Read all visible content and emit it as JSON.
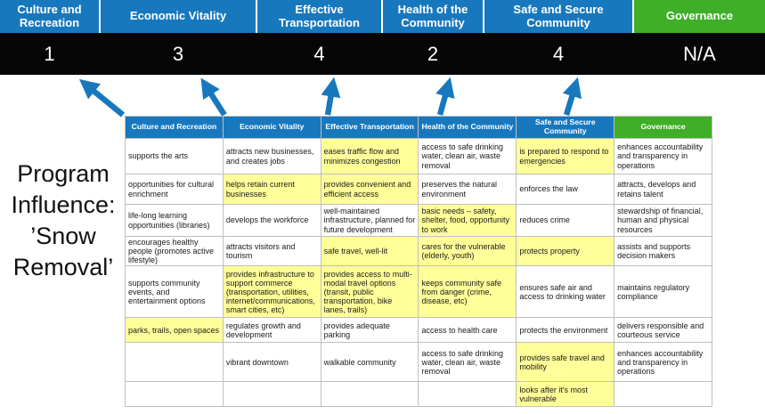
{
  "program_label": "Program Influence: ’Snow Removal’",
  "colors": {
    "header_blue": "#1878BE",
    "header_green": "#3FAE29",
    "highlight_yellow": "#FFFF99",
    "score_band_bg": "#050505",
    "arrow_blue": "#1878BE"
  },
  "top_band": {
    "cells": [
      {
        "label": "Culture and Recreation",
        "score": "1",
        "type": "blue"
      },
      {
        "label": "Economic Vitality",
        "score": "3",
        "type": "blue"
      },
      {
        "label": "Effective Transportation",
        "score": "4",
        "type": "blue"
      },
      {
        "label": "Health of the Community",
        "score": "2",
        "type": "blue"
      },
      {
        "label": "Safe and Secure Community",
        "score": "4",
        "type": "blue"
      },
      {
        "label": "Governance",
        "score": "N/A",
        "type": "green"
      }
    ]
  },
  "table": {
    "headers": [
      {
        "label": "Culture and Recreation",
        "type": "blue"
      },
      {
        "label": "Economic Vitality",
        "type": "blue"
      },
      {
        "label": "Effective Transportation",
        "type": "blue"
      },
      {
        "label": "Health of the Community",
        "type": "blue"
      },
      {
        "label": "Safe and Secure Community",
        "type": "blue"
      },
      {
        "label": "Governance",
        "type": "green"
      }
    ],
    "rows": [
      [
        {
          "text": "supports the arts",
          "hl": false
        },
        {
          "text": "attracts new businesses, and creates jobs",
          "hl": false
        },
        {
          "text": "eases traffic flow and minimizes congestion",
          "hl": true
        },
        {
          "text": "access to safe drinking water, clean air, waste removal",
          "hl": false
        },
        {
          "text": "is prepared to respond to emergencies",
          "hl": true
        },
        {
          "text": "enhances accountability and transparency in operations",
          "hl": false
        }
      ],
      [
        {
          "text": "opportunities for cultural enrichment",
          "hl": false
        },
        {
          "text": "helps retain current businesses",
          "hl": true
        },
        {
          "text": "provides convenient and efficient access",
          "hl": true
        },
        {
          "text": "preserves the natural environment",
          "hl": false
        },
        {
          "text": "enforces the law",
          "hl": false
        },
        {
          "text": "attracts, develops and retains talent",
          "hl": false
        }
      ],
      [
        {
          "text": "life-long learning opportunities (libraries)",
          "hl": false
        },
        {
          "text": "develops the workforce",
          "hl": false
        },
        {
          "text": "well-maintained infrastructure, planned for future development",
          "hl": false
        },
        {
          "text": "basic needs – safety, shelter, food, opportunity to work",
          "hl": true
        },
        {
          "text": "reduces crime",
          "hl": false
        },
        {
          "text": "stewardship of financial, human and physical resources",
          "hl": false
        }
      ],
      [
        {
          "text": "encourages healthy people (promotes active lifestyle)",
          "hl": false
        },
        {
          "text": "attracts visitors and tourism",
          "hl": false
        },
        {
          "text": "safe travel, well-lit",
          "hl": true
        },
        {
          "text": "cares for the vulnerable (elderly, youth)",
          "hl": true
        },
        {
          "text": "protects property",
          "hl": true
        },
        {
          "text": "assists and supports decision makers",
          "hl": false
        }
      ],
      [
        {
          "text": "supports community events, and entertainment options",
          "hl": false
        },
        {
          "text": "provides infrastructure to support commerce (transportation, utilities, internet/communications, smart cities, etc)",
          "hl": true
        },
        {
          "text": "provides access to multi-modal travel options (transit, public transportation, bike lanes, trails)",
          "hl": true
        },
        {
          "text": "keeps community safe from danger (crime, disease, etc)",
          "hl": true
        },
        {
          "text": "ensures safe air and access to drinking water",
          "hl": false
        },
        {
          "text": "maintains regulatory compliance",
          "hl": false
        }
      ],
      [
        {
          "text": "parks, trails, open spaces",
          "hl": true
        },
        {
          "text": "regulates growth and development",
          "hl": false
        },
        {
          "text": "provides adequate parking",
          "hl": false
        },
        {
          "text": "access to health care",
          "hl": false
        },
        {
          "text": "protects the environment",
          "hl": false
        },
        {
          "text": "delivers responsible and courteous service",
          "hl": false
        }
      ],
      [
        {
          "text": "",
          "hl": false
        },
        {
          "text": "vibrant downtown",
          "hl": false
        },
        {
          "text": "walkable community",
          "hl": false
        },
        {
          "text": "access to safe drinking water, clean air, waste removal",
          "hl": false
        },
        {
          "text": "provides safe travel and mobility",
          "hl": true
        },
        {
          "text": "enhances accountability and transparency in operations",
          "hl": false
        }
      ],
      [
        {
          "text": "",
          "hl": false
        },
        {
          "text": "",
          "hl": false
        },
        {
          "text": "",
          "hl": false
        },
        {
          "text": "",
          "hl": false
        },
        {
          "text": "looks after it's most vulnerable",
          "hl": true
        },
        {
          "text": "",
          "hl": false
        }
      ]
    ]
  }
}
